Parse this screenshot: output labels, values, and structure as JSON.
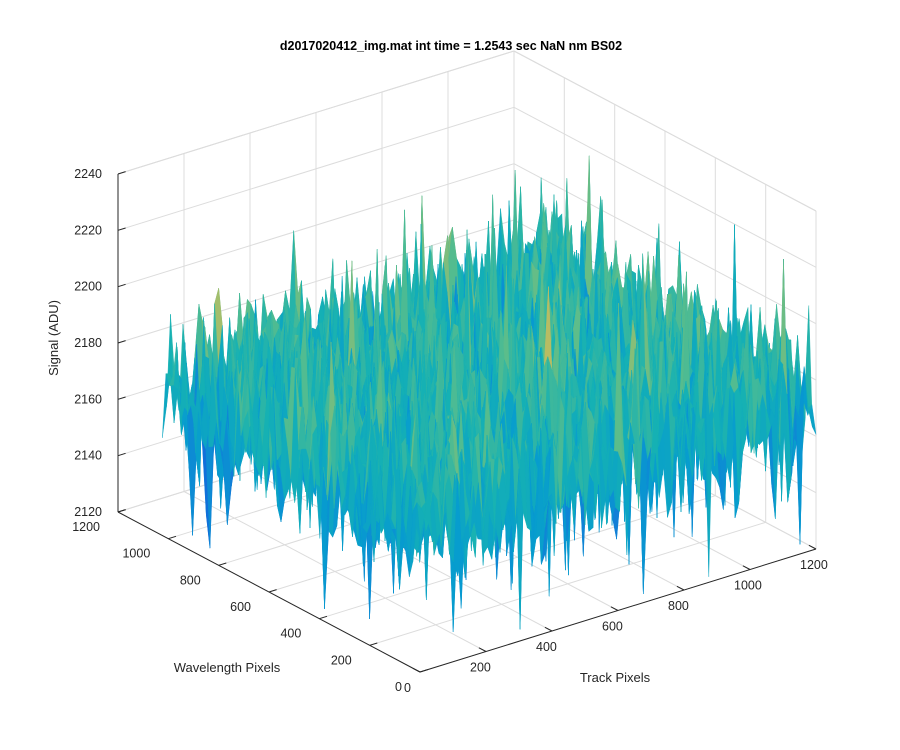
{
  "chart_data": {
    "type": "surface",
    "title": "d2017020412_img.mat int time = 1.2543 sec  NaN nm BS02",
    "xlabel": "Track Pixels",
    "ylabel": "Wavelength Pixels",
    "zlabel": "Signal (ADU)",
    "xlim": [
      0,
      1200
    ],
    "ylim": [
      0,
      1200
    ],
    "zlim": [
      2120,
      2240
    ],
    "x_ticks": [
      "0",
      "200",
      "400",
      "600",
      "800",
      "1000",
      "1200"
    ],
    "y_ticks": [
      "0",
      "200",
      "400",
      "600",
      "800",
      "1000",
      "1200"
    ],
    "z_ticks": [
      "2120",
      "2140",
      "2160",
      "2180",
      "2200",
      "2220",
      "2240"
    ],
    "x_range": [
      0,
      1200
    ],
    "y_range": [
      0,
      1024
    ],
    "z_mean": 2172,
    "z_typical_range": [
      2140,
      2205
    ],
    "z_observed_min": 2122,
    "z_observed_max": 2228,
    "colormap": "parula",
    "grid": true,
    "box": true
  }
}
